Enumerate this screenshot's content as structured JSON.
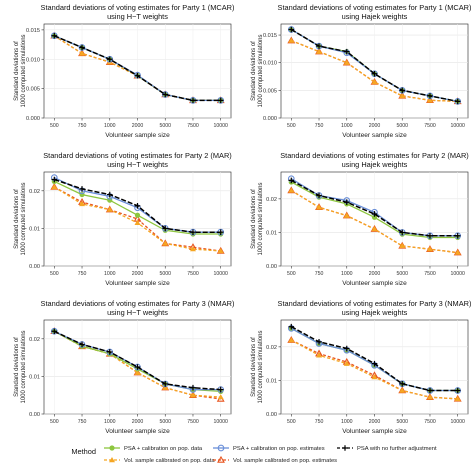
{
  "panel_titles": [
    [
      "Standard deviations of voting estimates for Party 1 (MCAR)",
      "using H−T weights"
    ],
    [
      "Standard deviations of voting estimates for Party 1 (MCAR)",
      "using Hajek weights"
    ],
    [
      "Standard deviations of voting estimates for Party 2 (MAR)",
      "using H−T weights"
    ],
    [
      "Standard deviations of voting estimates for Party 2 (MAR)",
      "using Hajek weights"
    ],
    [
      "Standard deviations of voting estimates for Party 3 (NMAR)",
      "using H−T weights"
    ],
    [
      "Standard deviations of voting estimates for Party 3 (NMAR)",
      "using Hajek weights"
    ]
  ],
  "ylabel_lines": [
    "Standard deviations of",
    "1000 computed simulations"
  ],
  "xlabel": "Volunteer sample size",
  "x_categories": [
    "500",
    "750",
    "1000",
    "2000",
    "5000",
    "7500",
    "10000"
  ],
  "series_styles": [
    {
      "color": "#8dc63f",
      "marker": "circle"
    },
    {
      "color": "#6a8fd8",
      "marker": "open-circle"
    },
    {
      "color": "#000000",
      "marker": "cross"
    },
    {
      "color": "#f5a623",
      "marker": "triangle"
    },
    {
      "color": "#e8541e",
      "marker": "open-triangle"
    }
  ],
  "legend": {
    "title": "Method",
    "items": [
      {
        "label": "PSA + calibration on pop. data",
        "series": 0
      },
      {
        "label": "PSA + calibration on pop. estimates",
        "series": 1
      },
      {
        "label": "PSA with no further adjustment",
        "series": 2
      },
      {
        "label": "Vol. sample calibrated on pop. data",
        "series": 3
      },
      {
        "label": "Vol. sample calibrated on pop. estimates",
        "series": 4
      }
    ]
  },
  "chart_data": [
    {
      "type": "line",
      "title": "Standard deviations of voting estimates for Party 1 (MCAR) using H−T weights",
      "categories": [
        "500",
        "750",
        "1000",
        "2000",
        "5000",
        "7500",
        "10000"
      ],
      "ylim": [
        0,
        0.016
      ],
      "yticks": [
        0,
        0.005,
        0.01,
        0.015
      ],
      "yticklabels": [
        "0.000",
        "0.005",
        "0.010",
        "0.015"
      ],
      "series": [
        {
          "values": [
            0.014,
            0.012,
            0.01,
            0.0072,
            0.004,
            0.003,
            0.003
          ]
        },
        {
          "values": [
            0.014,
            0.012,
            0.01,
            0.0073,
            0.004,
            0.003,
            0.003
          ]
        },
        {
          "values": [
            0.014,
            0.012,
            0.01,
            0.0072,
            0.004,
            0.003,
            0.003
          ]
        },
        {
          "values": [
            0.014,
            0.011,
            0.0095,
            0.0072,
            0.004,
            0.003,
            0.003
          ]
        },
        {
          "values": [
            0.014,
            0.011,
            0.0095,
            0.0072,
            0.004,
            0.003,
            0.003
          ]
        }
      ]
    },
    {
      "type": "line",
      "title": "Standard deviations of voting estimates for Party 1 (MCAR) using Hajek weights",
      "categories": [
        "500",
        "750",
        "1000",
        "2000",
        "5000",
        "7500",
        "10000"
      ],
      "ylim": [
        0,
        0.017
      ],
      "yticks": [
        0,
        0.005,
        0.01,
        0.015
      ],
      "yticklabels": [
        "0.000",
        "0.005",
        "0.010",
        "0.015"
      ],
      "series": [
        {
          "values": [
            0.016,
            0.013,
            0.012,
            0.008,
            0.005,
            0.004,
            0.003
          ]
        },
        {
          "values": [
            0.016,
            0.013,
            0.0118,
            0.008,
            0.005,
            0.004,
            0.003
          ]
        },
        {
          "values": [
            0.016,
            0.013,
            0.012,
            0.008,
            0.005,
            0.004,
            0.003
          ]
        },
        {
          "values": [
            0.014,
            0.012,
            0.01,
            0.0065,
            0.004,
            0.0032,
            0.003
          ]
        },
        {
          "values": [
            0.014,
            0.012,
            0.01,
            0.0065,
            0.004,
            0.0032,
            0.003
          ]
        }
      ]
    },
    {
      "type": "line",
      "title": "Standard deviations of voting estimates for Party 2 (MAR) using H−T weights",
      "categories": [
        "500",
        "750",
        "1000",
        "2000",
        "5000",
        "7500",
        "10000"
      ],
      "ylim": [
        0,
        0.025
      ],
      "yticks": [
        0,
        0.01,
        0.02
      ],
      "yticklabels": [
        "0.00",
        "0.01",
        "0.02"
      ],
      "series": [
        {
          "values": [
            0.0225,
            0.019,
            0.0175,
            0.0135,
            0.0095,
            0.0085,
            0.0085
          ]
        },
        {
          "values": [
            0.0235,
            0.02,
            0.0185,
            0.0155,
            0.01,
            0.009,
            0.009
          ]
        },
        {
          "values": [
            0.023,
            0.0205,
            0.019,
            0.016,
            0.01,
            0.009,
            0.009
          ]
        },
        {
          "values": [
            0.021,
            0.0165,
            0.015,
            0.0115,
            0.006,
            0.0045,
            0.004
          ]
        },
        {
          "values": [
            0.021,
            0.017,
            0.015,
            0.0125,
            0.006,
            0.005,
            0.004
          ]
        }
      ]
    },
    {
      "type": "line",
      "title": "Standard deviations of voting estimates for Party 2 (MAR) using Hajek weights",
      "categories": [
        "500",
        "750",
        "1000",
        "2000",
        "5000",
        "7500",
        "10000"
      ],
      "ylim": [
        0,
        0.028
      ],
      "yticks": [
        0,
        0.01,
        0.02
      ],
      "yticklabels": [
        "0.00",
        "0.01",
        "0.02"
      ],
      "series": [
        {
          "values": [
            0.025,
            0.0205,
            0.0185,
            0.0145,
            0.0095,
            0.0085,
            0.0085
          ]
        },
        {
          "values": [
            0.026,
            0.021,
            0.0195,
            0.016,
            0.01,
            0.009,
            0.009
          ]
        },
        {
          "values": [
            0.0255,
            0.021,
            0.019,
            0.0155,
            0.01,
            0.009,
            0.009
          ]
        },
        {
          "values": [
            0.0225,
            0.0175,
            0.015,
            0.011,
            0.006,
            0.005,
            0.004
          ]
        },
        {
          "values": [
            0.0225,
            0.0175,
            0.015,
            0.011,
            0.006,
            0.005,
            0.004
          ]
        }
      ]
    },
    {
      "type": "line",
      "title": "Standard deviations of voting estimates for Party 3 (NMAR) using H−T weights",
      "categories": [
        "500",
        "750",
        "1000",
        "2000",
        "5000",
        "7500",
        "10000"
      ],
      "ylim": [
        0,
        0.025
      ],
      "yticks": [
        0,
        0.01,
        0.02
      ],
      "yticklabels": [
        "0.00",
        "0.01",
        "0.02"
      ],
      "series": [
        {
          "values": [
            0.022,
            0.018,
            0.016,
            0.012,
            0.008,
            0.0065,
            0.006
          ]
        },
        {
          "values": [
            0.022,
            0.0185,
            0.0165,
            0.0125,
            0.008,
            0.0065,
            0.0065
          ]
        },
        {
          "values": [
            0.022,
            0.0185,
            0.0165,
            0.0125,
            0.008,
            0.007,
            0.0065
          ]
        },
        {
          "values": [
            0.022,
            0.018,
            0.016,
            0.011,
            0.007,
            0.005,
            0.0045
          ]
        },
        {
          "values": [
            0.022,
            0.018,
            0.016,
            0.011,
            0.007,
            0.005,
            0.004
          ]
        }
      ]
    },
    {
      "type": "line",
      "title": "Standard deviations of voting estimates for Party 3 (NMAR) using Hajek weights",
      "categories": [
        "500",
        "750",
        "1000",
        "2000",
        "5000",
        "7500",
        "10000"
      ],
      "ylim": [
        0,
        0.028
      ],
      "yticks": [
        0,
        0.01,
        0.02
      ],
      "yticklabels": [
        "0.00",
        "0.01",
        "0.02"
      ],
      "series": [
        {
          "values": [
            0.0255,
            0.021,
            0.019,
            0.0145,
            0.009,
            0.007,
            0.007
          ]
        },
        {
          "values": [
            0.0255,
            0.021,
            0.019,
            0.0145,
            0.009,
            0.007,
            0.007
          ]
        },
        {
          "values": [
            0.026,
            0.0215,
            0.0195,
            0.015,
            0.009,
            0.007,
            0.007
          ]
        },
        {
          "values": [
            0.022,
            0.0175,
            0.015,
            0.011,
            0.007,
            0.005,
            0.0045
          ]
        },
        {
          "values": [
            0.022,
            0.018,
            0.0155,
            0.0115,
            0.007,
            0.005,
            0.0045
          ]
        }
      ]
    }
  ]
}
